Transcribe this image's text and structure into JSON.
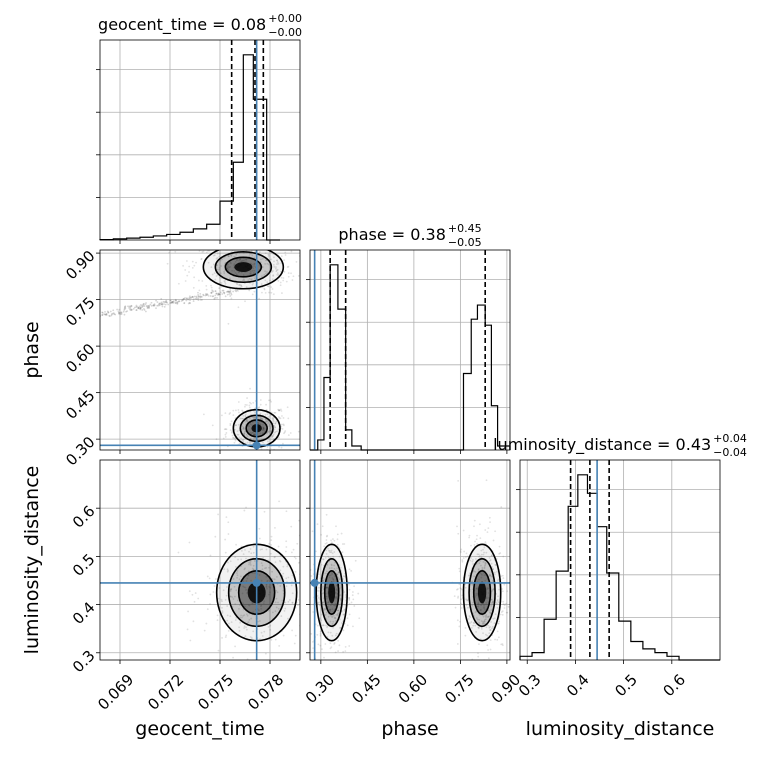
{
  "colors": {
    "truth": "#4682b4",
    "hist": "#000000",
    "scatter": "#555555"
  },
  "params": [
    "geocent_time",
    "phase",
    "luminosity_distance"
  ],
  "titles": [
    {
      "param": "geocent_time",
      "main": "geocent_time = 0.08",
      "plus": "+0.00",
      "minus": "−0.00"
    },
    {
      "param": "phase",
      "main": "phase = 0.38",
      "plus": "+0.45",
      "minus": "−0.05"
    },
    {
      "param": "luminosity_distance",
      "main": "luminosity_distance = 0.43",
      "plus": "+0.04",
      "minus": "−0.04"
    }
  ],
  "axis_labels": {
    "x": [
      "geocent_time",
      "phase",
      "luminosity_distance"
    ],
    "y": [
      "phase",
      "luminosity_distance"
    ]
  },
  "chart_data": {
    "type": "corner",
    "parameters": [
      {
        "name": "geocent_time",
        "range": [
          0.0678,
          0.0798
        ],
        "ticks": [
          "0.069",
          "0.072",
          "0.075",
          "0.078"
        ],
        "tick_values": [
          0.069,
          0.072,
          0.075,
          0.078
        ],
        "truth": 0.0772,
        "quantiles": [
          0.0757,
          0.0771,
          0.0776
        ]
      },
      {
        "name": "phase",
        "range": [
          0.265,
          0.91
        ],
        "ticks": [
          "0.30",
          "0.45",
          "0.60",
          "0.75",
          "0.90"
        ],
        "tick_values": [
          0.3,
          0.45,
          0.6,
          0.75,
          0.9
        ],
        "truth": 0.28,
        "quantiles": [
          0.33,
          0.38,
          0.83
        ]
      },
      {
        "name": "luminosity_distance",
        "range": [
          0.285,
          0.7
        ],
        "ticks": [
          "0.3",
          "0.4",
          "0.5",
          "0.6"
        ],
        "tick_values": [
          0.3,
          0.4,
          0.5,
          0.6
        ],
        "truth": 0.445,
        "quantiles": [
          0.39,
          0.43,
          0.47
        ]
      }
    ],
    "histograms": [
      {
        "param": "geocent_time",
        "bins": [
          0.0678,
          0.0686,
          0.0694,
          0.0702,
          0.071,
          0.0718,
          0.0726,
          0.0734,
          0.0742,
          0.075,
          0.0758,
          0.0764,
          0.077,
          0.0778,
          0.0786
        ],
        "counts": [
          0.2,
          0.6,
          1.0,
          1.5,
          2.2,
          3.0,
          4.2,
          6.0,
          8.5,
          21,
          42,
          100,
          76,
          0
        ]
      },
      {
        "param": "phase",
        "bins": [
          0.265,
          0.29,
          0.31,
          0.33,
          0.355,
          0.38,
          0.4,
          0.43,
          0.76,
          0.785,
          0.805,
          0.83,
          0.85,
          0.87,
          0.91
        ],
        "counts": [
          0,
          5,
          36,
          92,
          70,
          10,
          2,
          0,
          38,
          65,
          72,
          62,
          22,
          2
        ]
      },
      {
        "param": "luminosity_distance",
        "bins": [
          0.285,
          0.31,
          0.335,
          0.36,
          0.385,
          0.405,
          0.425,
          0.445,
          0.465,
          0.49,
          0.515,
          0.54,
          0.565,
          0.59,
          0.615,
          0.7
        ],
        "counts": [
          2,
          4,
          22,
          48,
          83,
          100,
          90,
          72,
          47,
          21,
          10,
          6,
          4,
          2,
          0
        ]
      }
    ],
    "contours_2d": [
      {
        "x": "geocent_time",
        "y": "phase",
        "modes": [
          {
            "center": [
              0.0772,
              0.335
            ],
            "spread": [
              0.0007,
              0.03
            ]
          },
          {
            "center": [
              0.0764,
              0.855
            ],
            "spread": [
              0.0012,
              0.035
            ]
          }
        ]
      },
      {
        "x": "geocent_time",
        "y": "luminosity_distance",
        "modes": [
          {
            "center": [
              0.0772,
              0.425
            ],
            "spread": [
              0.0012,
              0.05
            ]
          }
        ]
      },
      {
        "x": "phase",
        "y": "luminosity_distance",
        "modes": [
          {
            "center": [
              0.335,
              0.425
            ],
            "spread": [
              0.025,
              0.05
            ]
          },
          {
            "center": [
              0.82,
              0.425
            ],
            "spread": [
              0.03,
              0.05
            ]
          }
        ]
      }
    ]
  }
}
